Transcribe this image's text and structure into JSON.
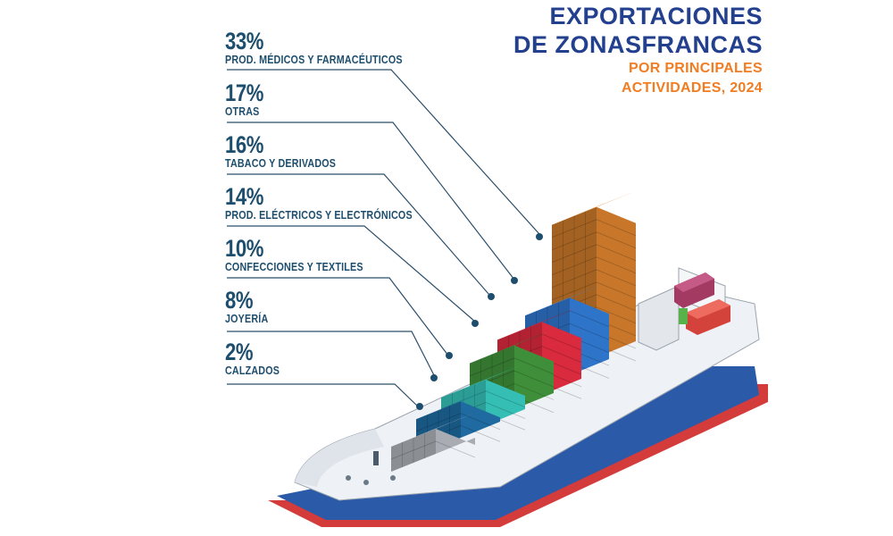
{
  "title": {
    "line1": "EXPORTACIONES",
    "line2": "DE ZONASFRANCAS"
  },
  "subtitle": {
    "line1": "POR PRINCIPALES",
    "line2": "ACTIVIDADES, 2024"
  },
  "colors": {
    "title": "#23408e",
    "subtitle": "#f07d23",
    "label": "#1e4e6e"
  },
  "chart_data": {
    "type": "bar",
    "title": "EXPORTACIONES DE ZONASFRANCAS POR PRINCIPALES ACTIVIDADES, 2024",
    "unit": "%",
    "categories": [
      "PROD. MÉDICOS Y FARMACÉUTICOS",
      "OTRAS",
      "TABACO Y DERIVADOS",
      "PROD. ELÉCTRICOS Y ELECTRÓNICOS",
      "CONFECCIONES Y TEXTILES",
      "JOYERÍA",
      "CALZADOS"
    ],
    "values": [
      33,
      17,
      16,
      14,
      10,
      8,
      2
    ],
    "value_labels": [
      "33%",
      "17%",
      "16%",
      "14%",
      "10%",
      "8%",
      "2%"
    ],
    "series_colors": [
      "#c8772a",
      "#2e74c9",
      "#d92a3e",
      "#3f8f3a",
      "#35bfb4",
      "#1f6aa0",
      "#a9adb3"
    ]
  }
}
